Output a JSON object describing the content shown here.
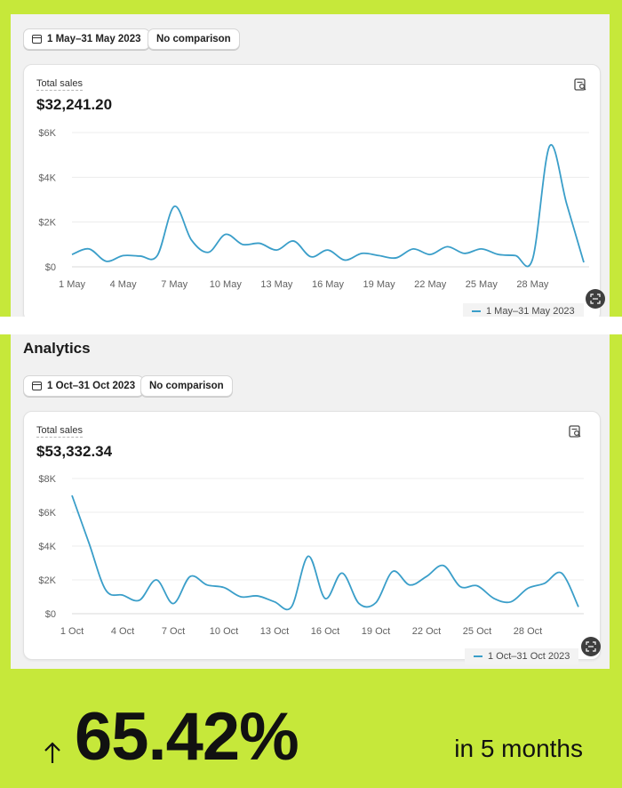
{
  "panel1": {
    "date_range": "1 May–31 May 2023",
    "comparison": "No comparison",
    "metric_label": "Total sales",
    "metric_value": "$32,241.20",
    "legend": "1 May–31 May 2023"
  },
  "panel2": {
    "heading": "Analytics",
    "date_range": "1 Oct–31 Oct 2023",
    "comparison": "No comparison",
    "metric_label": "Total sales",
    "metric_value": "$53,332.34",
    "legend": "1 Oct–31 Oct 2023"
  },
  "banner": {
    "growth": "65.42%",
    "period": "in 5 months"
  },
  "colors": {
    "accent": "#c6e83a",
    "line": "#3a9ec9"
  },
  "chart_data": [
    {
      "type": "line",
      "title": "Total sales",
      "y_ticks": [
        "$0",
        "$2K",
        "$4K",
        "$6K"
      ],
      "ylim": [
        0,
        6000
      ],
      "x_ticks": [
        "1 May",
        "4 May",
        "7 May",
        "10 May",
        "13 May",
        "16 May",
        "19 May",
        "22 May",
        "25 May",
        "28 May"
      ],
      "x": [
        "1 May",
        "2 May",
        "3 May",
        "4 May",
        "5 May",
        "6 May",
        "7 May",
        "8 May",
        "9 May",
        "10 May",
        "11 May",
        "12 May",
        "13 May",
        "14 May",
        "15 May",
        "16 May",
        "17 May",
        "18 May",
        "19 May",
        "20 May",
        "21 May",
        "22 May",
        "23 May",
        "24 May",
        "25 May",
        "26 May",
        "27 May",
        "28 May",
        "29 May",
        "30 May",
        "31 May"
      ],
      "series": [
        {
          "name": "1 May–31 May 2023",
          "values": [
            550,
            800,
            250,
            500,
            480,
            500,
            2700,
            1200,
            650,
            1450,
            1000,
            1050,
            750,
            1150,
            450,
            750,
            300,
            600,
            500,
            400,
            800,
            550,
            900,
            600,
            800,
            550,
            500,
            350,
            5400,
            2800,
            200
          ]
        }
      ],
      "grid": true
    },
    {
      "type": "line",
      "title": "Total sales",
      "y_ticks": [
        "$0",
        "$2K",
        "$4K",
        "$6K",
        "$8K"
      ],
      "ylim": [
        0,
        8000
      ],
      "x_ticks": [
        "1 Oct",
        "4 Oct",
        "7 Oct",
        "10 Oct",
        "13 Oct",
        "16 Oct",
        "19 Oct",
        "22 Oct",
        "25 Oct",
        "28 Oct"
      ],
      "x": [
        "1 Oct",
        "2 Oct",
        "3 Oct",
        "4 Oct",
        "5 Oct",
        "6 Oct",
        "7 Oct",
        "8 Oct",
        "9 Oct",
        "10 Oct",
        "11 Oct",
        "12 Oct",
        "13 Oct",
        "14 Oct",
        "15 Oct",
        "16 Oct",
        "17 Oct",
        "18 Oct",
        "19 Oct",
        "20 Oct",
        "21 Oct",
        "22 Oct",
        "23 Oct",
        "24 Oct",
        "25 Oct",
        "26 Oct",
        "27 Oct",
        "28 Oct",
        "29 Oct",
        "30 Oct",
        "31 Oct"
      ],
      "series": [
        {
          "name": "1 Oct–31 Oct 2023",
          "values": [
            7000,
            4200,
            1400,
            1100,
            800,
            2000,
            600,
            2200,
            1700,
            1550,
            1000,
            1050,
            700,
            400,
            3400,
            900,
            2400,
            600,
            650,
            2500,
            1700,
            2200,
            2850,
            1600,
            1650,
            900,
            700,
            1500,
            1800,
            2400,
            400
          ]
        }
      ],
      "grid": true
    }
  ]
}
